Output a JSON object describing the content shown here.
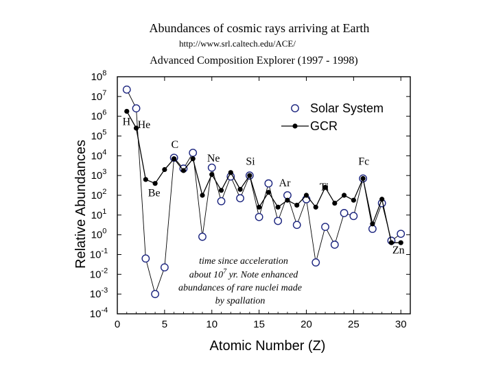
{
  "header": {
    "title": "Abundances of cosmic rays arriving at Earth",
    "url": "http://www.srl.caltech.edu/ACE/",
    "subtitle": "Advanced Composition Explorer (1997 - 1998)"
  },
  "chart_data": {
    "type": "scatter",
    "xlabel": "Atomic Number (Z)",
    "ylabel": "Relative Abundances",
    "xlim": [
      0,
      31
    ],
    "ylim_log10": [
      -4,
      8
    ],
    "x_ticks": [
      0,
      5,
      10,
      15,
      20,
      25,
      30
    ],
    "y_tick_labels": [
      {
        "base": "10",
        "exp": "8"
      },
      {
        "base": "10",
        "exp": "7"
      },
      {
        "base": "10",
        "exp": "6"
      },
      {
        "base": "10",
        "exp": "5"
      },
      {
        "base": "10",
        "exp": "4"
      },
      {
        "base": "10",
        "exp": "3"
      },
      {
        "base": "10",
        "exp": "2"
      },
      {
        "base": "10",
        "exp": "1"
      },
      {
        "base": "10",
        "exp": "0"
      },
      {
        "base": "10",
        "exp": "-1"
      },
      {
        "base": "10",
        "exp": "-2"
      },
      {
        "base": "10",
        "exp": "-3"
      },
      {
        "base": "10",
        "exp": "-4"
      }
    ],
    "y_ticks_log10": [
      8,
      7,
      6,
      5,
      4,
      3,
      2,
      1,
      0,
      -1,
      -2,
      -3,
      -4
    ],
    "legend": {
      "position": "top-right",
      "solar_label": "Solar System",
      "gcr_label": "GCR"
    },
    "series": [
      {
        "name": "Solar System",
        "marker": "open-circle",
        "line": "thin",
        "points": [
          [
            1,
            7.35
          ],
          [
            2,
            6.4
          ],
          [
            3,
            -1.2
          ],
          [
            4,
            -3.0
          ],
          [
            5,
            -1.65
          ],
          [
            6,
            3.9
          ],
          [
            7,
            3.35
          ],
          [
            8,
            4.15
          ],
          [
            9,
            -0.1
          ],
          [
            10,
            3.4
          ],
          [
            11,
            1.7
          ],
          [
            12,
            2.95
          ],
          [
            13,
            1.85
          ],
          [
            14,
            3.0
          ],
          [
            15,
            0.9
          ],
          [
            16,
            2.6
          ],
          [
            17,
            0.7
          ],
          [
            18,
            2.0
          ],
          [
            19,
            0.5
          ],
          [
            20,
            1.8
          ],
          [
            21,
            -1.4
          ],
          [
            22,
            0.4
          ],
          [
            23,
            -0.5
          ],
          [
            24,
            1.1
          ],
          [
            25,
            0.95
          ],
          [
            26,
            2.85
          ],
          [
            27,
            0.3
          ],
          [
            28,
            1.6
          ],
          [
            29,
            -0.3
          ],
          [
            30,
            0.05
          ]
        ]
      },
      {
        "name": "GCR",
        "marker": "filled-circle",
        "line": "solid",
        "points": [
          [
            1,
            6.25
          ],
          [
            2,
            5.4
          ],
          [
            3,
            2.8
          ],
          [
            4,
            2.6
          ],
          [
            5,
            3.3
          ],
          [
            6,
            3.85
          ],
          [
            7,
            3.25
          ],
          [
            8,
            3.85
          ],
          [
            9,
            2.0
          ],
          [
            10,
            3.05
          ],
          [
            11,
            2.25
          ],
          [
            12,
            3.15
          ],
          [
            13,
            2.3
          ],
          [
            14,
            3.0
          ],
          [
            15,
            1.4
          ],
          [
            16,
            2.15
          ],
          [
            17,
            1.4
          ],
          [
            18,
            1.75
          ],
          [
            19,
            1.5
          ],
          [
            20,
            2.0
          ],
          [
            21,
            1.4
          ],
          [
            22,
            2.4
          ],
          [
            23,
            1.6
          ],
          [
            24,
            2.0
          ],
          [
            25,
            1.75
          ],
          [
            26,
            2.85
          ],
          [
            27,
            0.55
          ],
          [
            28,
            1.8
          ],
          [
            29,
            -0.4
          ],
          [
            30,
            -0.4
          ]
        ]
      }
    ],
    "element_labels": [
      {
        "text": "H",
        "x": 0.55,
        "y": 5.55
      },
      {
        "text": "He",
        "x": 2.15,
        "y": 5.4
      },
      {
        "text": "Be",
        "x": 3.25,
        "y": 1.95
      },
      {
        "text": "C",
        "x": 5.7,
        "y": 4.4
      },
      {
        "text": "Ne",
        "x": 9.5,
        "y": 3.7
      },
      {
        "text": "Si",
        "x": 13.6,
        "y": 3.55
      },
      {
        "text": "Ar",
        "x": 17.1,
        "y": 2.45
      },
      {
        "text": "Ti",
        "x": 21.4,
        "y": 2.25
      },
      {
        "text": "Fc",
        "x": 25.5,
        "y": 3.55
      },
      {
        "text": "Zn",
        "x": 29.1,
        "y": -0.95
      }
    ],
    "annotation": [
      "time since acceleration",
      "about 10",
      "7",
      " yr. Note enhanced",
      "abundances of rare nuclei made",
      "by spallation"
    ]
  }
}
